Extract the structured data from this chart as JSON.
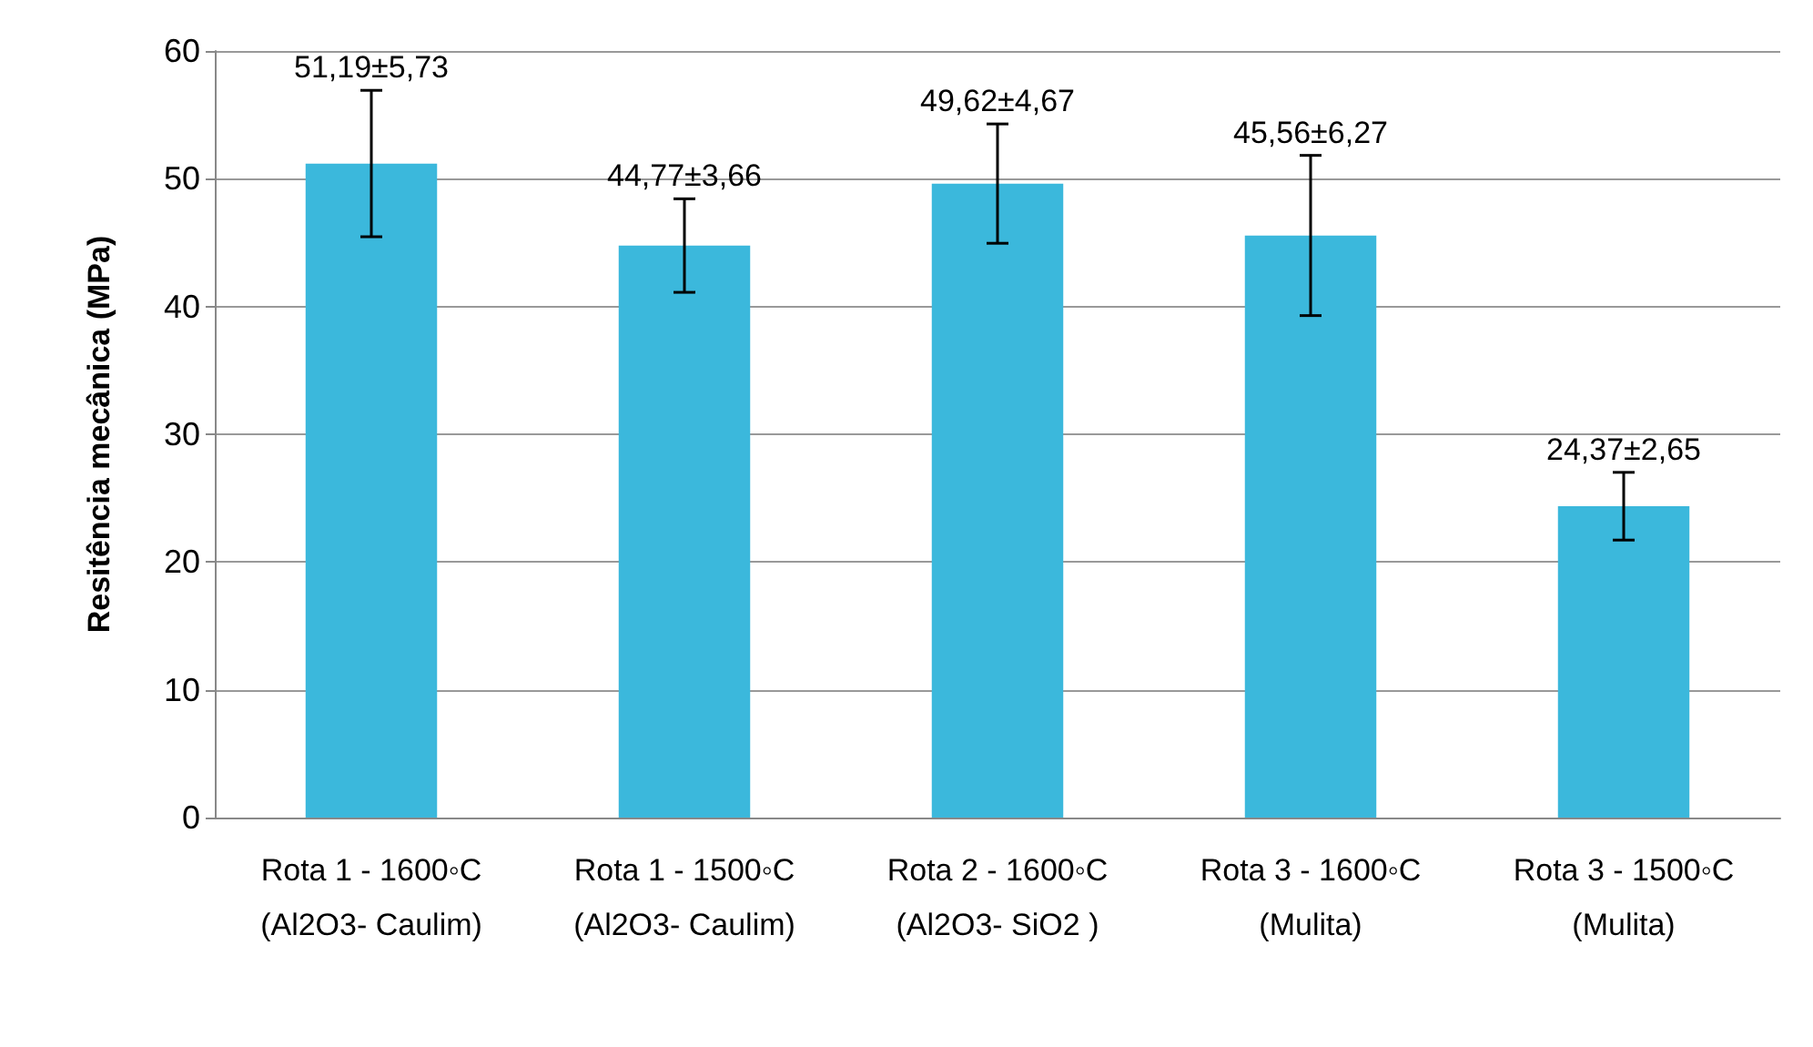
{
  "chart_data": {
    "type": "bar",
    "ylabel": "Resitência mecânica (MPa)",
    "categories": [
      "Rota 1 - 1600◦C\n(Al2O3- Caulim)",
      "Rota 1 - 1500◦C\n(Al2O3- Caulim)",
      "Rota 2 - 1600◦C\n(Al2O3- SiO2 )",
      "Rota 3 - 1600◦C\n(Mulita)",
      "Rota 3 - 1500◦C\n(Mulita)"
    ],
    "values": [
      51.19,
      44.77,
      49.62,
      45.56,
      24.37
    ],
    "errors": [
      5.73,
      3.66,
      4.67,
      6.27,
      2.65
    ],
    "value_labels": [
      "51,19±5,73",
      "44,77±3,66",
      "49,62±4,67",
      "45,56±6,27",
      "24,37±2,65"
    ],
    "color": "#3bb8dc",
    "ylim": [
      0,
      60
    ],
    "yticks": [
      0,
      10,
      20,
      30,
      40,
      50,
      60
    ],
    "grid": "y"
  }
}
